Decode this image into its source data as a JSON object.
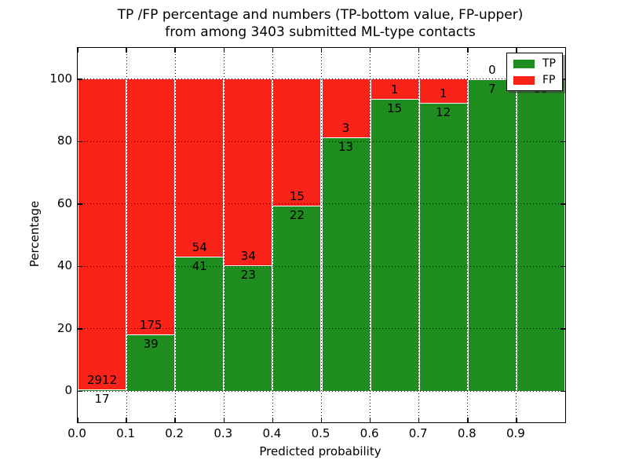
{
  "title": {
    "line1": "TP /FP percentage and numbers (TP-bottom value, FP-upper)",
    "line2": "from among 3403 submitted ML-type contacts"
  },
  "chart_data": {
    "type": "bar",
    "subtype": "stacked-percentage-histogram",
    "title": "TP /FP percentage and numbers (TP-bottom value, FP-upper) from among 3403 submitted ML-type contacts",
    "xlabel": "Predicted probability",
    "ylabel": "Percentage",
    "xlim": [
      0.0,
      1.0
    ],
    "ylim": [
      -10,
      110
    ],
    "x_ticks": [
      "0.0",
      "0.1",
      "0.2",
      "0.3",
      "0.4",
      "0.5",
      "0.6",
      "0.7",
      "0.8",
      "0.9"
    ],
    "x_tick_positions": [
      0.0,
      0.1,
      0.2,
      0.3,
      0.4,
      0.5,
      0.6,
      0.7,
      0.8,
      0.9
    ],
    "y_ticks": [
      "0",
      "20",
      "40",
      "60",
      "80",
      "100"
    ],
    "y_tick_positions": [
      0,
      20,
      40,
      60,
      80,
      100
    ],
    "grid": {
      "style": "dotted",
      "color": "#000000"
    },
    "bin_starts": [
      0.0,
      0.1,
      0.2,
      0.3,
      0.4,
      0.5,
      0.6,
      0.7,
      0.8,
      0.9
    ],
    "bin_width": 0.1,
    "total_contacts": 3403,
    "series": [
      {
        "name": "TP",
        "color": "#1e8c1e",
        "values": [
          17,
          39,
          41,
          23,
          22,
          13,
          15,
          12,
          7,
          19
        ]
      },
      {
        "name": "FP",
        "color": "#fa231a",
        "values": [
          2912,
          175,
          54,
          34,
          15,
          3,
          1,
          1,
          0,
          0
        ]
      }
    ],
    "bar_value_labels": {
      "tp": [
        "17",
        "39",
        "41",
        "23",
        "22",
        "13",
        "15",
        "12",
        "7",
        "19"
      ],
      "fp": [
        "2912",
        "175",
        "54",
        "34",
        "15",
        "3",
        "1",
        "1",
        "0",
        ""
      ]
    },
    "legend": {
      "position": "upper right",
      "entries": [
        {
          "label": "TP",
          "color": "#1e8c1e"
        },
        {
          "label": "FP",
          "color": "#fa231a"
        }
      ]
    }
  },
  "colors": {
    "tp_green": "#1e8c1e",
    "fp_red": "#fa231a",
    "background": "#ffffff",
    "text": "#000000",
    "bar_edge": "#ffffff"
  }
}
